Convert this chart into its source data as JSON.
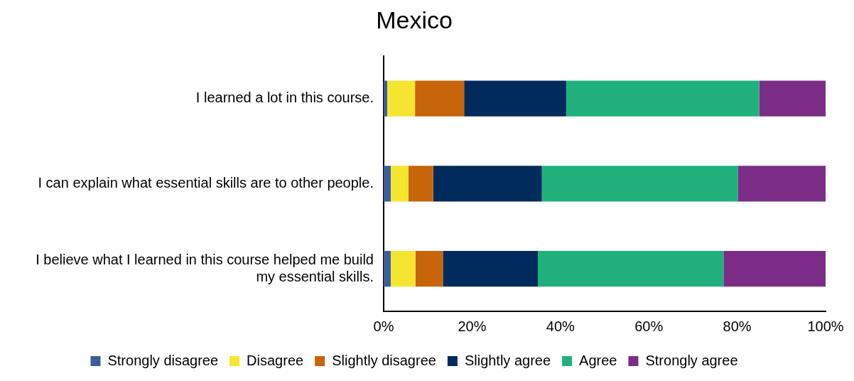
{
  "chart_data": {
    "type": "bar",
    "title": "Mexico",
    "orientation": "horizontal",
    "stacked": true,
    "categories": [
      "I learned a lot in this course.",
      "I can explain what essential skills are to other people.",
      "I believe what I learned in this course helped me build my essential skills."
    ],
    "series": [
      {
        "name": "Strongly disagree",
        "color": "#3a5f9a",
        "values": [
          0.8,
          1.6,
          1.6
        ]
      },
      {
        "name": "Disagree",
        "color": "#f5e52f",
        "values": [
          6.3,
          4.0,
          5.6
        ]
      },
      {
        "name": "Slightly disagree",
        "color": "#c8640a",
        "values": [
          11.1,
          5.6,
          6.2
        ]
      },
      {
        "name": "Slightly agree",
        "color": "#002b5c",
        "values": [
          23.1,
          24.6,
          21.5
        ]
      },
      {
        "name": "Agree",
        "color": "#1fb07c",
        "values": [
          43.7,
          44.4,
          42.0
        ]
      },
      {
        "name": "Strongly agree",
        "color": "#7b2d86",
        "values": [
          15.0,
          19.8,
          23.1
        ]
      }
    ],
    "xlim": [
      0,
      100
    ],
    "xticks": [
      {
        "value": 0,
        "label": "0%"
      },
      {
        "value": 20,
        "label": "20%"
      },
      {
        "value": 40,
        "label": "40%"
      },
      {
        "value": 60,
        "label": "60%"
      },
      {
        "value": 80,
        "label": "80%"
      },
      {
        "value": 100,
        "label": "100%"
      }
    ],
    "grid": false,
    "legend": "bottom"
  }
}
